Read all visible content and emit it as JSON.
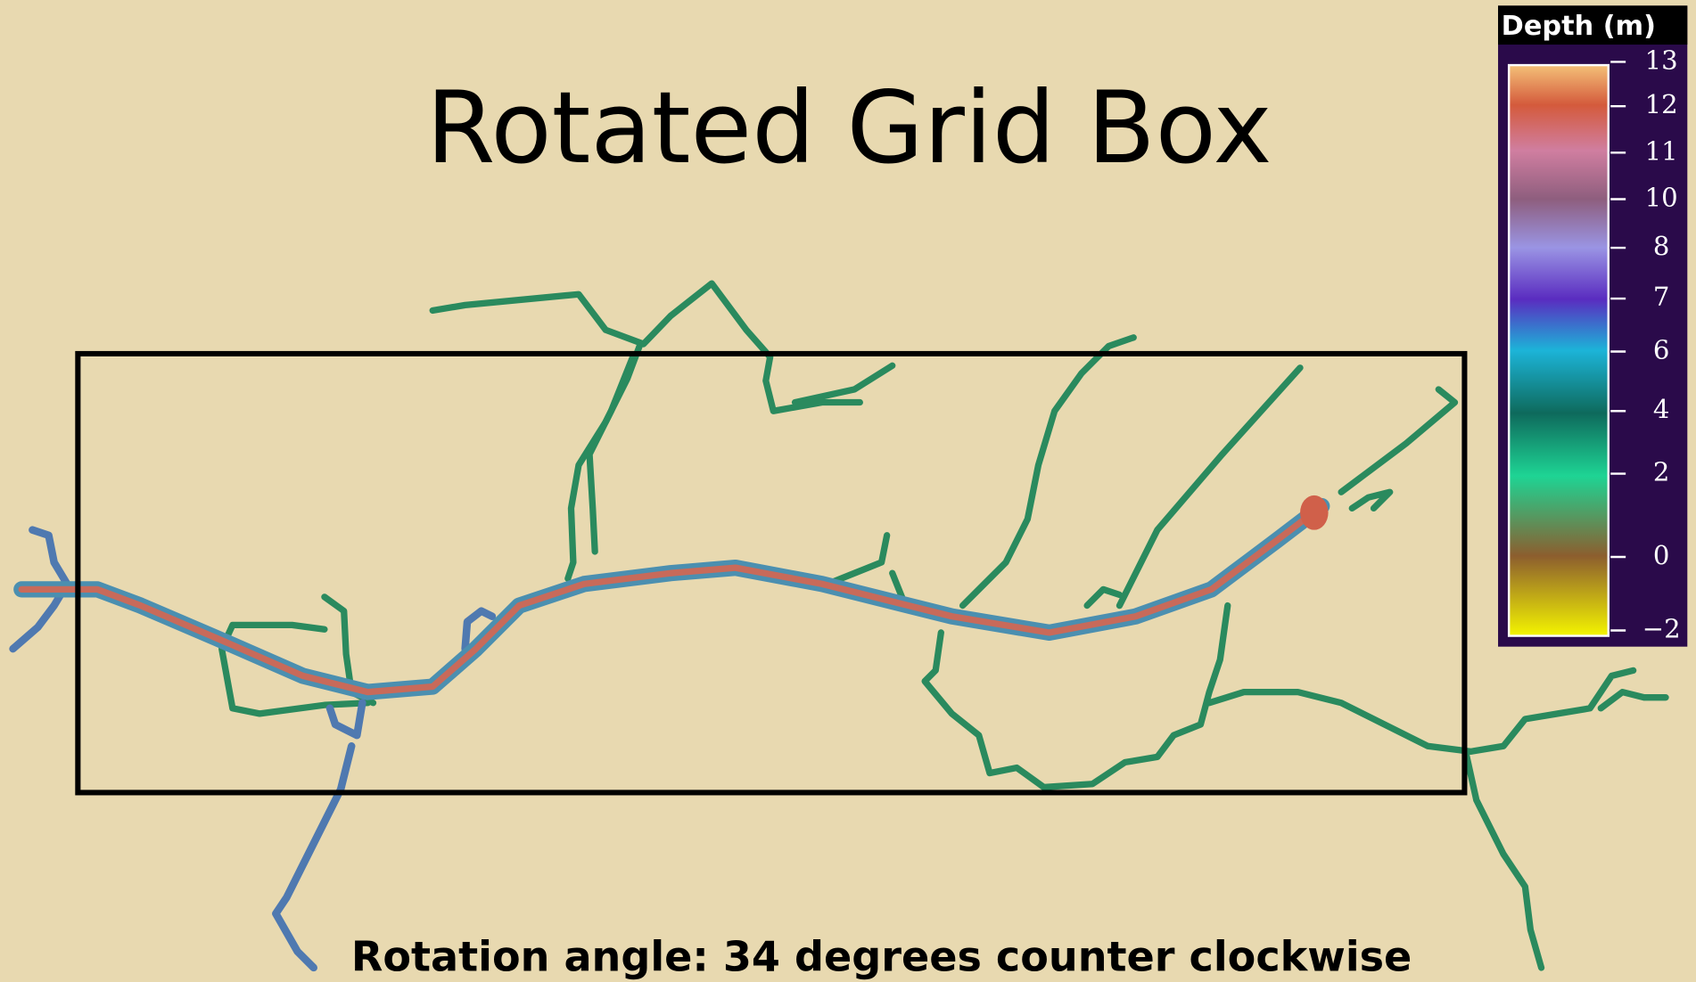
{
  "title": "Rotated Grid Box",
  "caption": "Rotation angle: 34 degrees counter clockwise",
  "colorbar": {
    "title": "Depth (m)",
    "ticks": [
      "13",
      "12",
      "11",
      "10",
      "8",
      "7",
      "6",
      "4",
      "2",
      "0",
      "−2"
    ]
  }
}
